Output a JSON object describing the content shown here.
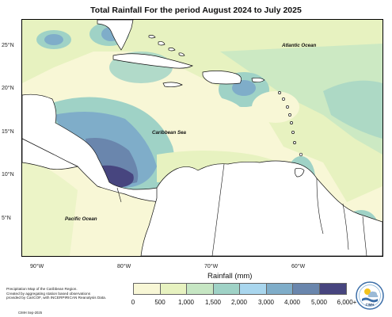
{
  "title": "Total Rainfall For the period August 2024 to July 2025",
  "lat_labels": [
    "25°N",
    "20°N",
    "15°N",
    "10°N",
    "5°N"
  ],
  "lon_labels": [
    "90°W",
    "80°W",
    "70°W",
    "60°W"
  ],
  "map_labels": {
    "atlantic": "Atlantic Ocean",
    "caribbean": "Caribbean Sea",
    "pacific": "Pacific Ocean"
  },
  "legend": {
    "title": "Rainfall (mm)",
    "ticks": [
      "0",
      "500",
      "1,000",
      "1,500",
      "2,000",
      "3,000",
      "4,000",
      "5,000",
      "6,000+"
    ],
    "colors": [
      "#f8f7d6",
      "#e7f2c0",
      "#c6e6c3",
      "#9fd2c6",
      "#a9d6ee",
      "#7fadc9",
      "#6a86ad",
      "#47457f"
    ]
  },
  "credit": {
    "line1": "Precipitation Map of the Caribbean Region.",
    "line2": "Created by aggregating station based observations",
    "line3": "provided by CariCOF, with INCERPIRICAN Reanalysis Data.",
    "date": "CIMH Sep-2025"
  },
  "logo_text": "CIMH"
}
